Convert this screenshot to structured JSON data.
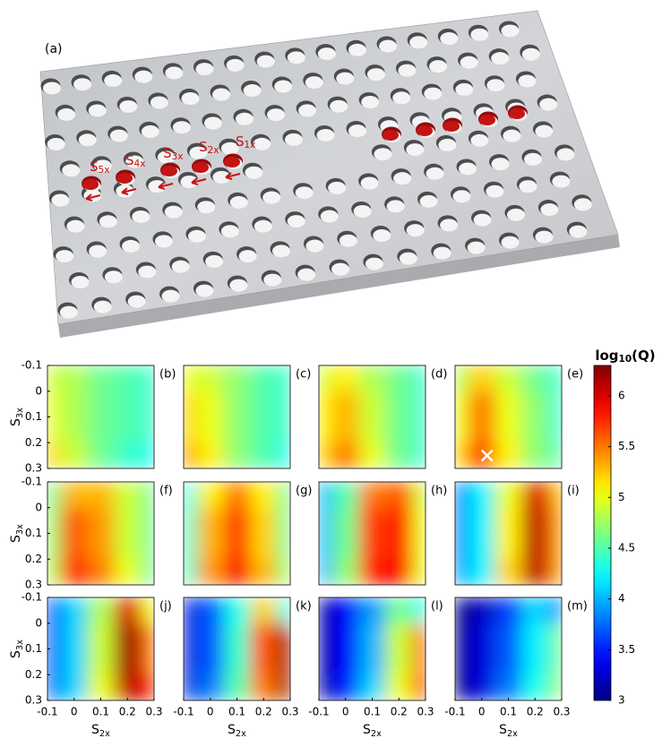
{
  "figure": {
    "panel_a": {
      "label": "(a)",
      "hole_labels": [
        {
          "main": "S",
          "sub": "1x"
        },
        {
          "main": "S",
          "sub": "2x"
        },
        {
          "main": "S",
          "sub": "3x"
        },
        {
          "main": "S",
          "sub": "4x"
        },
        {
          "main": "S",
          "sub": "5x"
        }
      ]
    },
    "chart_data": {
      "type": "heatmap",
      "xlabel": {
        "main": "S",
        "sub": "2x"
      },
      "ylabel": {
        "main": "S",
        "sub": "3x"
      },
      "xlim": [
        -0.1,
        0.3
      ],
      "ylim": [
        -0.1,
        0.3
      ],
      "xticks": [
        -0.1,
        0,
        0.1,
        0.2,
        0.3
      ],
      "yticks": [
        -0.1,
        0,
        0.1,
        0.2,
        0.3
      ],
      "grid_x": [
        -0.1,
        0,
        0.1,
        0.2,
        0.3
      ],
      "grid_y": [
        -0.1,
        0.1,
        0.3
      ],
      "colorbar": {
        "title": {
          "main": "log",
          "sub": "10",
          "rest": "(Q)"
        },
        "clim": [
          3,
          6.3
        ],
        "ticks": [
          3,
          3.5,
          4,
          4.5,
          5,
          5.5,
          6
        ],
        "colormap": "jet"
      },
      "panels": [
        {
          "label": "(b)",
          "values": [
            [
              4.9,
              4.8,
              4.6,
              4.5,
              4.4
            ],
            [
              5.0,
              4.8,
              4.6,
              4.5,
              4.4
            ],
            [
              5.2,
              4.9,
              4.6,
              4.4,
              4.3
            ]
          ]
        },
        {
          "label": "(c)",
          "values": [
            [
              5.0,
              4.9,
              4.7,
              4.5,
              4.4
            ],
            [
              5.2,
              5.0,
              4.7,
              4.5,
              4.4
            ],
            [
              5.4,
              5.1,
              4.7,
              4.5,
              4.3
            ]
          ]
        },
        {
          "label": "(d)",
          "values": [
            [
              4.9,
              5.1,
              4.8,
              4.6,
              4.4
            ],
            [
              5.1,
              5.3,
              4.9,
              4.6,
              4.4
            ],
            [
              5.2,
              5.5,
              5.0,
              4.6,
              4.4
            ]
          ]
        },
        {
          "label": "(e)",
          "values": [
            [
              4.8,
              5.2,
              4.9,
              4.6,
              4.4
            ],
            [
              5.0,
              5.5,
              5.0,
              4.7,
              4.4
            ],
            [
              5.2,
              5.7,
              5.1,
              4.7,
              4.5
            ]
          ],
          "marker": {
            "x": 0.02,
            "y": 0.25
          }
        },
        {
          "label": "(f)",
          "values": [
            [
              4.6,
              5.3,
              5.3,
              4.9,
              4.6
            ],
            [
              4.7,
              5.6,
              5.4,
              4.9,
              4.6
            ],
            [
              4.8,
              5.8,
              5.5,
              5.0,
              4.6
            ]
          ]
        },
        {
          "label": "(g)",
          "values": [
            [
              4.3,
              5.1,
              5.5,
              5.1,
              4.6
            ],
            [
              4.4,
              5.3,
              5.7,
              5.2,
              4.6
            ],
            [
              4.4,
              5.4,
              5.9,
              5.3,
              4.7
            ]
          ]
        },
        {
          "label": "(h)",
          "values": [
            [
              4.0,
              4.5,
              5.5,
              5.6,
              4.9
            ],
            [
              4.0,
              4.6,
              5.7,
              5.8,
              5.0
            ],
            [
              4.0,
              4.7,
              5.8,
              5.9,
              5.0
            ]
          ]
        },
        {
          "label": "(i)",
          "values": [
            [
              3.8,
              4.2,
              5.0,
              6.0,
              5.3
            ],
            [
              3.8,
              4.2,
              5.1,
              6.1,
              5.4
            ],
            [
              3.9,
              4.2,
              5.2,
              6.1,
              5.4
            ]
          ]
        },
        {
          "label": "(j)",
          "values": [
            [
              3.6,
              4.1,
              4.8,
              6.0,
              5.0
            ],
            [
              3.6,
              4.1,
              4.9,
              6.2,
              5.5
            ],
            [
              3.7,
              4.1,
              5.0,
              6.1,
              5.8
            ]
          ]
        },
        {
          "label": "(k)",
          "values": [
            [
              3.3,
              3.7,
              4.3,
              5.2,
              4.3
            ],
            [
              3.3,
              3.7,
              4.4,
              5.6,
              6.2
            ],
            [
              3.3,
              3.8,
              4.5,
              5.5,
              6.2
            ]
          ]
        },
        {
          "label": "(l)",
          "values": [
            [
              3.1,
              3.4,
              3.9,
              4.6,
              4.3
            ],
            [
              3.1,
              3.4,
              4.0,
              4.9,
              5.6
            ],
            [
              3.1,
              3.5,
              4.1,
              5.0,
              5.8
            ]
          ]
        },
        {
          "label": "(m)",
          "values": [
            [
              3.0,
              3.2,
              3.6,
              4.1,
              3.9
            ],
            [
              3.0,
              3.3,
              3.7,
              4.2,
              4.6
            ],
            [
              3.0,
              3.3,
              3.8,
              4.3,
              4.7
            ]
          ]
        }
      ]
    }
  }
}
